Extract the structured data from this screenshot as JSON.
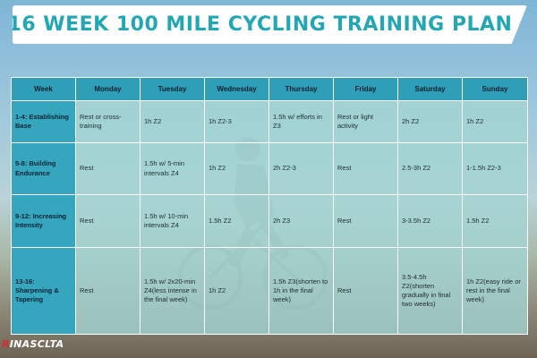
{
  "banner": {
    "title": "16 WEEK 100 MILE CYCLING TRAINING PLAN"
  },
  "colors": {
    "accent": "#23a7b4",
    "header_bg": "#2f9fb7",
    "cell_bg": "#a3d5d2"
  },
  "table": {
    "columns": [
      "Week",
      "Monday",
      "Tuesday",
      "Wednesday",
      "Thursday",
      "Friday",
      "Saturday",
      "Sunday"
    ],
    "rows": [
      [
        "1-4: Establishing Base",
        "Rest or cross-training",
        "1h Z2",
        "1h Z2-3",
        "1.5h w/ efforts in Z3",
        "Rest or light activity",
        "2h Z2",
        "1h Z2"
      ],
      [
        "5-8: Building Endurance",
        "Rest",
        "1.5h w/ 5-min intervals Z4",
        "1h Z2",
        "2h Z2-3",
        "Rest",
        "2.5-3h Z2",
        "1-1.5h Z2-3"
      ],
      [
        "9-12: Increasing Intensity",
        "Rest",
        "1.5h w/ 10-min intervals Z4",
        "1.5h Z2",
        "2h Z3",
        "Rest",
        "3-3.5h Z2",
        "1.5h Z2"
      ],
      [
        "13-16: Sharpening & Tapering",
        "Rest",
        "1.5h w/ 2x20-min Z4(less intense in the final week)",
        "1h Z2",
        "1.5h Z3(shorten to 1h in the final week)",
        "Rest",
        "3.5-4.5h Z2(shorten gradually in final two weeks)",
        "1h Z2(easy ride or rest in the final week)"
      ]
    ]
  },
  "footer": {
    "logo_initial": "R",
    "logo_rest": "INASCLTA"
  }
}
